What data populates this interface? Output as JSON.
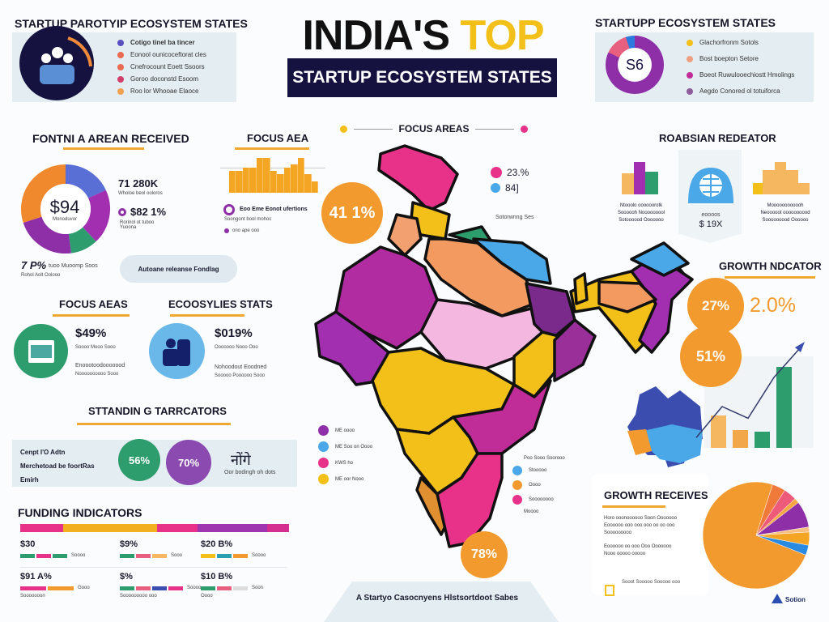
{
  "title": {
    "line1a": "INDIA'S",
    "line1b": "TOP",
    "banner": "STARTUP ECOSYSTEM STATES"
  },
  "colors": {
    "navy": "#15123f",
    "yellow": "#f2c018",
    "orange": "#f29a2e",
    "pink": "#e8328a",
    "purple": "#8e2fa8",
    "green": "#2e9d6e",
    "blue": "#4aa8e8"
  },
  "top_left": {
    "heading": "STARTUP PAROTYIP ECOSYSTEM STATES",
    "icon": "people-group-icon",
    "items": [
      "Cotigo tinel ba tincer",
      "Eonool ounicoceftorat cles",
      "Cnefrocount Eoett Ssoors",
      "Goroo doconstd Esoom",
      "Roo lor Whooae Elaoce"
    ]
  },
  "top_right": {
    "heading": "STARTUPP ECOSYSTEM STATES",
    "donut_label": "S6",
    "items": [
      "Glachorfronm Sotols",
      "Bost boepton Setore",
      "Boeot Ruwulooechiostt Hmolings",
      "Aegdo Conored ol totuiforca"
    ]
  },
  "funding": {
    "heading": "FONTNI A AREAN RECEIVED",
    "center": "$94",
    "center_sub": "Monoduvor",
    "stat1": "71 280K",
    "stat1_sub": "Wholoe beol ooloros",
    "stat2": "$82 1%",
    "stat2_sub": "Rorinol ot tuboo Yuoona",
    "bottom_val": "7 P%",
    "bottom_sub": "tuoo Muoomp Soos",
    "bottom_sub2": "Rohol Aolt Oolooo",
    "pill": "Autoane releanse Fondlag",
    "donut": [
      {
        "value": 18,
        "color": "#5a6fd6"
      },
      {
        "value": 20,
        "color": "#a22fb0"
      },
      {
        "value": 10,
        "color": "#2e9d6e"
      },
      {
        "value": 22,
        "color": "#8e2fa8"
      },
      {
        "value": 30,
        "color": "#f0882e"
      }
    ]
  },
  "focus_area": {
    "heading": "FOCUS AEA",
    "bars": [
      14,
      14,
      16,
      16,
      22,
      22,
      14,
      12,
      16,
      18,
      22,
      12,
      7
    ],
    "item": "Eoo Eme Eonot ufertions",
    "item_sub": "Soongont bool mohoc",
    "item_sub2": "ono  ape  ooo"
  },
  "focus_areas": {
    "heading": "FOCUS AREAS",
    "big_pct": "41 1%",
    "stat1": "23.%",
    "stat2": "84]",
    "note": "Sotorwnng Ses",
    "left_legend": [
      "ME oooo",
      "ME Soo on Oooo",
      "KWS ho",
      "ME oor Nooo"
    ],
    "right_legend": [
      "Poo Sooo Soorooo",
      "Stooooo",
      "Oooo",
      "Soooooooo",
      "Moooo"
    ],
    "bottom_pct": "78%"
  },
  "footer": {
    "text": "A Startyo Casocnyens Hlstsortdoot Sabes"
  },
  "region": {
    "heading": "ROABSIAN REDEATOR",
    "left_text": [
      "Ntooolo oooooorotk",
      "Soooooh Nooooooool",
      "Sotoooood Ooooooo"
    ],
    "center_label": "eoooos",
    "center_value": "$ 19X",
    "right_text": [
      "Moooooooooooh",
      "Neooooot oooooooood",
      "Sooooooood Oooooo"
    ]
  },
  "growth_indicator": {
    "heading": "GROWTH NDCATOR",
    "pct1": "27%",
    "pct2": "2.0%",
    "pct3": "51%",
    "bars": [
      40,
      22,
      20,
      100
    ],
    "bar_colors": [
      "#f5b860",
      "#f2a84a",
      "#2e9d6e",
      "#2e9d6e"
    ],
    "trend": [
      8,
      40,
      28,
      70,
      100
    ]
  },
  "growth_receives": {
    "heading": "GROWTH RECEIVES",
    "text": [
      "Horo ooonoooooo Soon Ooooooo",
      "Eoooooo ooo ooo ooo oo oo ooo",
      "Sooooooooo",
      "Eoooooo oo ooo Ooo Ooooooo",
      "Nooo ooooo ooooo"
    ],
    "pie": [
      {
        "value": 74,
        "color": "#f29a2e"
      },
      {
        "value": 4,
        "color": "#f07a3a"
      },
      {
        "value": 4,
        "color": "#ee5a7a"
      },
      {
        "value": 1.5,
        "color": "#f7a840"
      },
      {
        "value": 8,
        "color": "#8e2fa8"
      },
      {
        "value": 1.5,
        "color": "#f8c080"
      },
      {
        "value": 4,
        "color": "#f5a524"
      },
      {
        "value": 3,
        "color": "#2a8ae0"
      }
    ],
    "footnote": "Sooot Sooooo Sooooo ooo",
    "logo_text": "Sotion"
  },
  "focus_aeas": {
    "heading": "FOCUS AEAS",
    "icon": "calendar-icon",
    "value": "$49%",
    "sub": "Soooo Mooo Sooo",
    "text1": "Enoootoodooooood",
    "text2": "Noooooooooo Sooo"
  },
  "ecosystem_stats": {
    "heading": "ECOOSYLIES STATS",
    "icon": "people-icon",
    "value": "$019%",
    "sub": "Ooooooo Nooo Ooo",
    "text1": "Nohoodout Eoodned",
    "text2": "Sooooo Poooooo Sooo"
  },
  "standing": {
    "heading": "STTANDIN G TARRCATORS",
    "lines": [
      "Cenpt I'O Adtn",
      "Merchetoad be foortRas",
      "Emirh"
    ],
    "pct1": "56%",
    "pct2": "70%",
    "hindi": "नोंगे",
    "note": "Oor bodingh oh dots"
  },
  "funding_indicators": {
    "heading": "FUNDING INDICATORS",
    "stripe": [
      {
        "w": 16,
        "c": "#e8328a"
      },
      {
        "w": 35,
        "c": "#f2b020"
      },
      {
        "w": 15,
        "c": "#e8328a"
      },
      {
        "w": 26,
        "c": "#a035b0"
      },
      {
        "w": 8,
        "c": "#d5308f"
      }
    ],
    "cells": [
      {
        "value": "$30",
        "sub": "Soooo"
      },
      {
        "value": "$9%",
        "sub": "Sooo"
      },
      {
        "value": "$20 B%",
        "sub": "Soooo"
      },
      {
        "value": "$91 A%",
        "sub": "Gooo",
        "sub2": "Sooooooon"
      },
      {
        "value": "$%",
        "sub": "Soooo",
        "sub2": "Sooooooooo ooo"
      },
      {
        "value": "$10 B%",
        "sub": "Soon",
        "sub2": "Oooo"
      }
    ]
  }
}
